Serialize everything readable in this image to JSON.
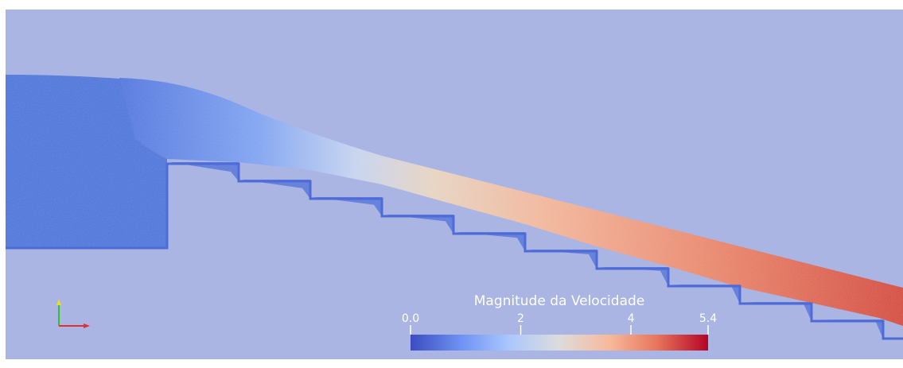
{
  "colorbar": {
    "title": "Magnitude da Velocidade",
    "range": [
      0.0,
      5.4
    ],
    "ticks": [
      {
        "value": 0.0,
        "label": "0.0"
      },
      {
        "value": 2,
        "label": "2"
      },
      {
        "value": 4,
        "label": "4"
      },
      {
        "value": 5.4,
        "label": "5.4"
      }
    ],
    "colormap": [
      "#3b4cc0",
      "#6f92f3",
      "#aac7fd",
      "#dddcdc",
      "#f7b89c",
      "#e7745b",
      "#b40426"
    ]
  },
  "scene": {
    "background": "#abb5e3",
    "wall_color": "#4f6bd6",
    "reservoir_color": "#4a72d8",
    "step_count": 10
  },
  "orientation_axes": {
    "x_color": "#e03030",
    "y_color": "#e0e020",
    "z_color": "#30c030"
  }
}
